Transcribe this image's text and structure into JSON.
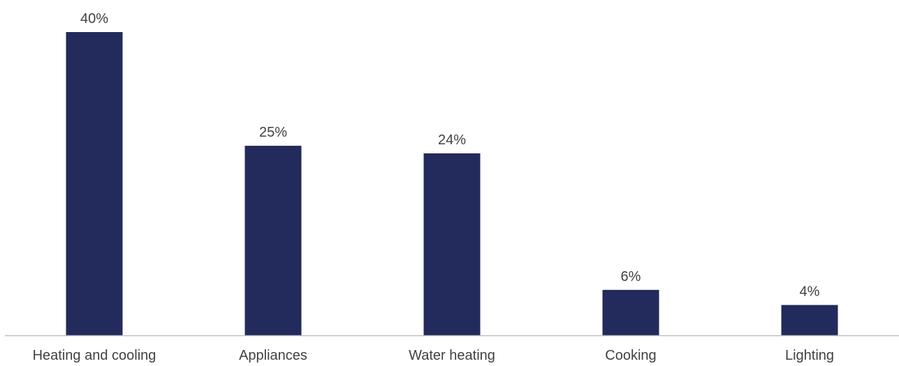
{
  "chart_data": {
    "type": "bar",
    "categories": [
      "Heating and cooling",
      "Appliances",
      "Water heating",
      "Cooking",
      "Lighting"
    ],
    "values": [
      40,
      25,
      24,
      6,
      4
    ],
    "value_labels": [
      "40%",
      "25%",
      "24%",
      "6%",
      "4%"
    ],
    "title": "",
    "xlabel": "",
    "ylabel": "",
    "ylim": [
      0,
      40
    ],
    "grid": false,
    "legend": "none",
    "bar_color": "#232a5c",
    "axis_color": "#bfbfbf",
    "text_color": "#404040"
  }
}
